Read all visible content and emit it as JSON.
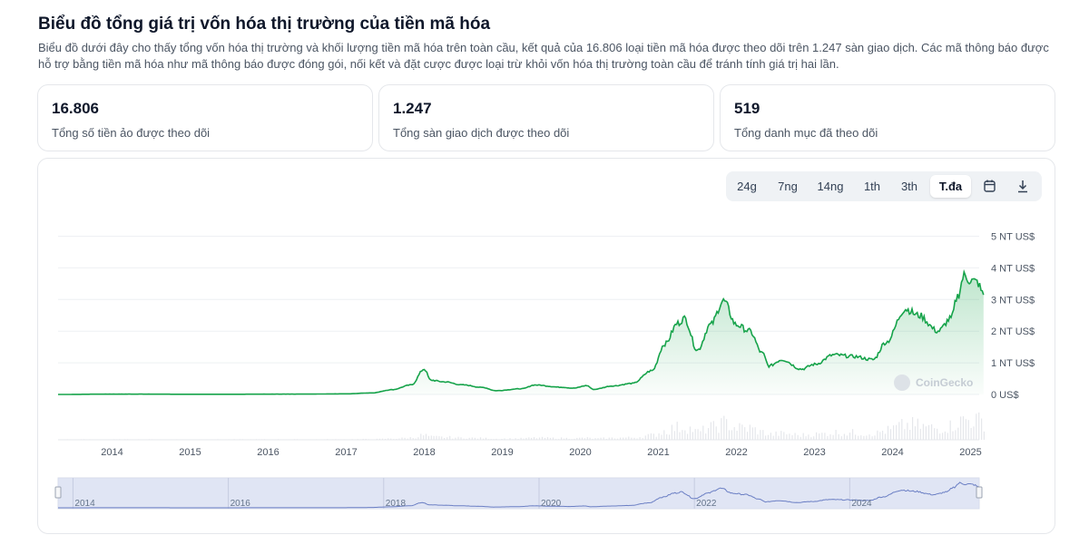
{
  "page": {
    "title": "Biểu đồ tổng giá trị vốn hóa thị trường của tiền mã hóa",
    "description": "Biểu đồ dưới đây cho thấy tổng vốn hóa thị trường và khối lượng tiền mã hóa trên toàn cầu, kết quả của 16.806 loại tiền mã hóa được theo dõi trên 1.247 sàn giao dịch. Các mã thông báo được hỗ trợ bằng tiền mã hóa như mã thông báo được đóng gói, nối kết và đặt cược được loại trừ khỏi vốn hóa thị trường toàn cầu để tránh tính giá trị hai lần."
  },
  "stats": [
    {
      "value": "16.806",
      "label": "Tổng số tiền ảo được theo dõi"
    },
    {
      "value": "1.247",
      "label": "Tổng sàn giao dịch được theo dõi"
    },
    {
      "value": "519",
      "label": "Tổng danh mục đã theo dõi"
    }
  ],
  "toolbar": {
    "ranges": [
      "24g",
      "7ng",
      "14ng",
      "1th",
      "3th",
      "T.đa"
    ],
    "active": "T.đa",
    "calendar_icon": "calendar-icon",
    "download_icon": "download-icon"
  },
  "watermark": "CoinGecko",
  "colors": {
    "line": "#16a34a",
    "fill": "#16a34a",
    "volume": "#e5e7eb",
    "navigator_fill": "#d6dcf0",
    "navigator_line": "#6b7fc4"
  },
  "chart_data": {
    "type": "area",
    "y_unit": "NT US$",
    "ylim": [
      0,
      5
    ],
    "y_ticks": [
      0,
      1,
      2,
      3,
      4,
      5
    ],
    "y_tick_labels": [
      "0 US$",
      "1 NT US$",
      "2 NT US$",
      "3 NT US$",
      "4 NT US$",
      "5 NT US$"
    ],
    "x_tick_labels": [
      "2014",
      "2015",
      "2016",
      "2017",
      "2018",
      "2019",
      "2020",
      "2021",
      "2022",
      "2023",
      "2024",
      "2025"
    ],
    "navigator_labels": [
      "2014",
      "2016",
      "2018",
      "2020",
      "2022",
      "2024"
    ],
    "grid": true,
    "series": [
      {
        "values_unit": "NT US$",
        "x": [
          "2013-05",
          "2013-12",
          "2014-06",
          "2015-01",
          "2015-06",
          "2016-01",
          "2016-06",
          "2017-01",
          "2017-05",
          "2017-08",
          "2017-11",
          "2018-01",
          "2018-02",
          "2018-04",
          "2018-07",
          "2018-10",
          "2018-12",
          "2019-04",
          "2019-06",
          "2019-10",
          "2019-12",
          "2020-02",
          "2020-03",
          "2020-06",
          "2020-09",
          "2020-12",
          "2021-02",
          "2021-04",
          "2021-05",
          "2021-07",
          "2021-09",
          "2021-11",
          "2022-01",
          "2022-03",
          "2022-05",
          "2022-06",
          "2022-08",
          "2022-11",
          "2023-01",
          "2023-04",
          "2023-07",
          "2023-10",
          "2023-12",
          "2024-03",
          "2024-05",
          "2024-08",
          "2024-10",
          "2024-11",
          "2024-12",
          "2025-01",
          "2025-02",
          "2025-03"
        ],
        "values": [
          0.0,
          0.01,
          0.01,
          0.005,
          0.005,
          0.01,
          0.01,
          0.02,
          0.05,
          0.15,
          0.3,
          0.8,
          0.45,
          0.4,
          0.3,
          0.22,
          0.12,
          0.18,
          0.3,
          0.23,
          0.2,
          0.28,
          0.16,
          0.27,
          0.35,
          0.75,
          1.6,
          2.25,
          2.4,
          1.4,
          2.2,
          2.95,
          2.2,
          2.0,
          1.3,
          0.9,
          1.1,
          0.8,
          0.95,
          1.25,
          1.2,
          1.1,
          1.65,
          2.7,
          2.5,
          2.0,
          2.4,
          3.1,
          3.75,
          3.6,
          3.55,
          3.15
        ]
      }
    ]
  }
}
